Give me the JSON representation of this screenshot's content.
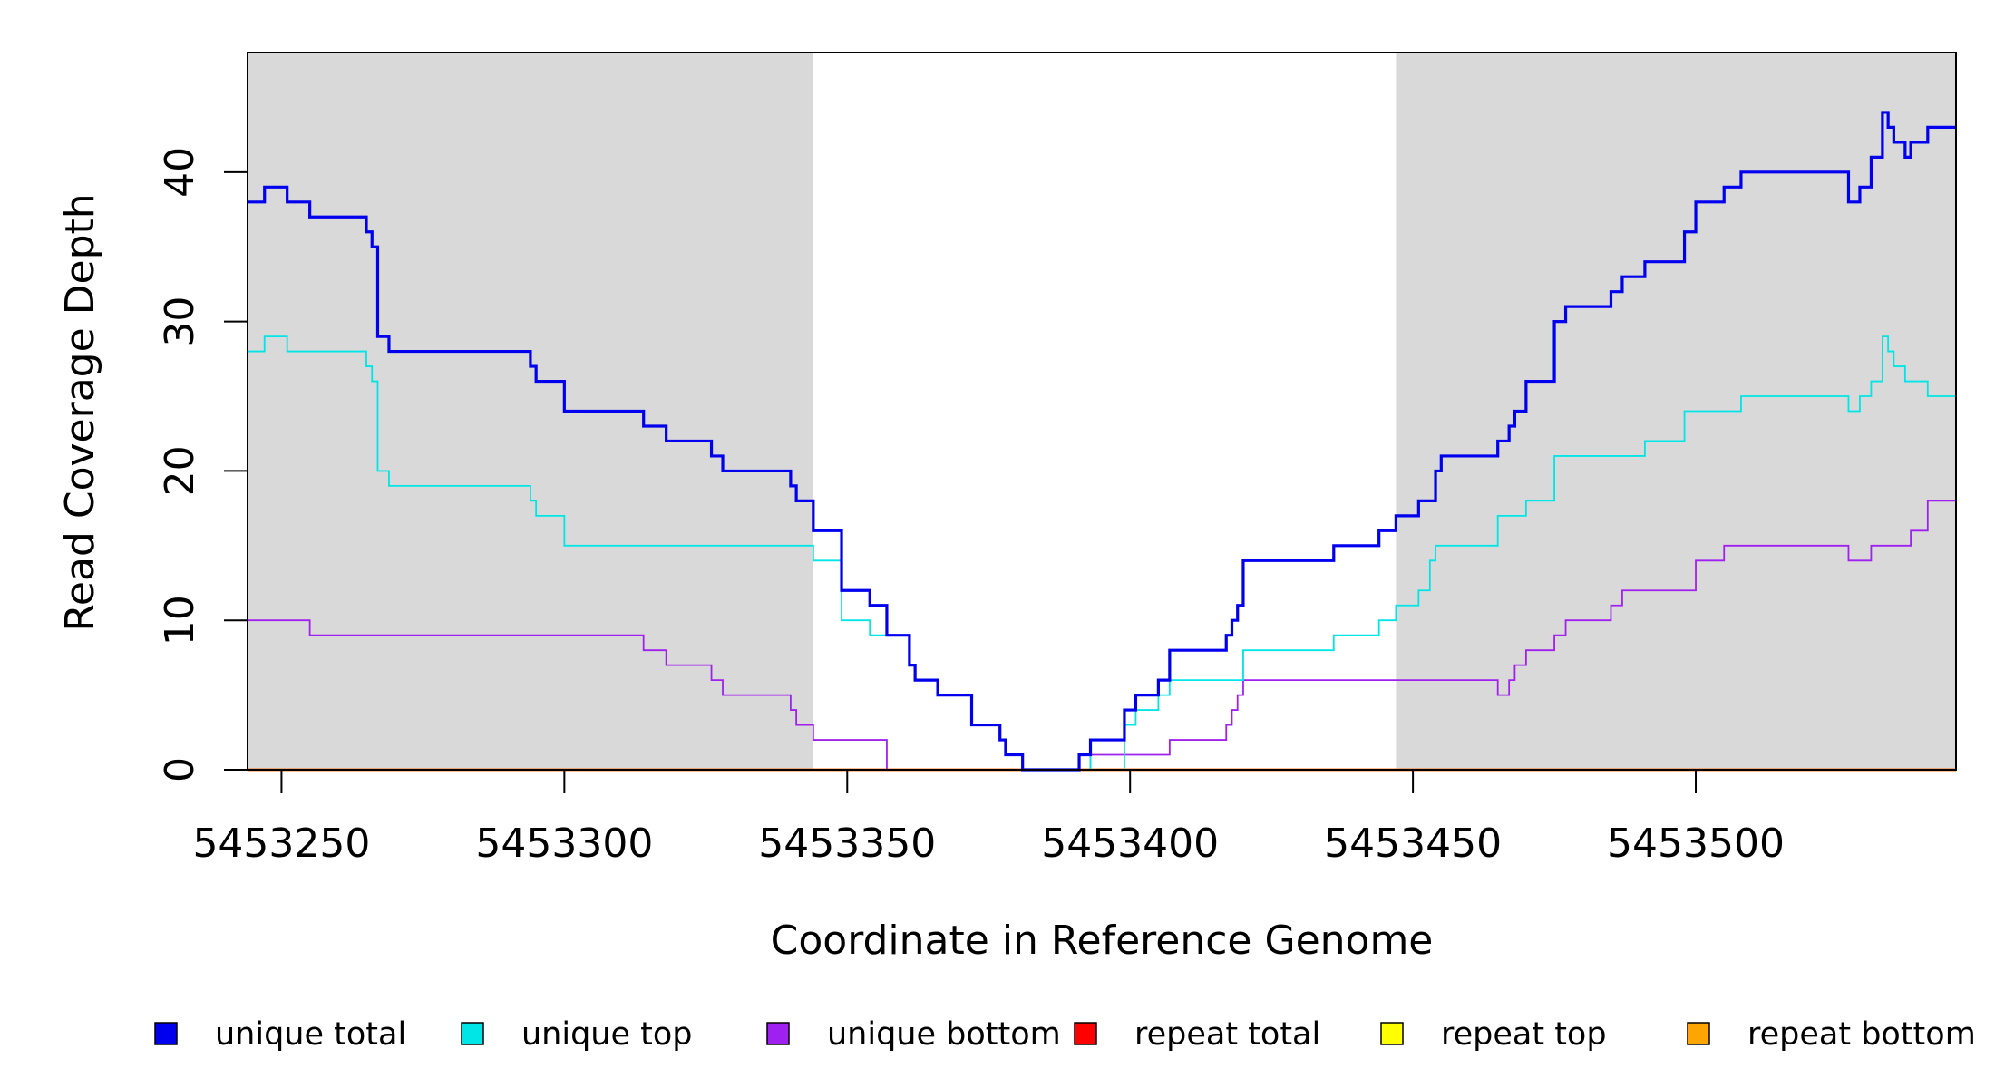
{
  "chart_data": {
    "type": "line",
    "step": true,
    "title": "",
    "xlabel": "Coordinate in Reference Genome",
    "ylabel": "Read Coverage Depth",
    "xlim": [
      5453244,
      5453546
    ],
    "ylim": [
      0,
      48
    ],
    "x_ticks": [
      5453250,
      5453300,
      5453350,
      5453400,
      5453450,
      5453500
    ],
    "y_ticks": [
      0,
      10,
      20,
      30,
      40
    ],
    "shaded_regions": [
      {
        "x_start": 5453244,
        "x_end": 5453344,
        "color": "#d9d9d9"
      },
      {
        "x_start": 5453447,
        "x_end": 5453546,
        "color": "#d9d9d9"
      }
    ],
    "legend_position": "bottom",
    "series": [
      {
        "name": "unique total",
        "color": "#0000ee",
        "points": [
          [
            5453244,
            38
          ],
          [
            5453247,
            39
          ],
          [
            5453251,
            38
          ],
          [
            5453255,
            37
          ],
          [
            5453265,
            36
          ],
          [
            5453266,
            35
          ],
          [
            5453267,
            29
          ],
          [
            5453269,
            28
          ],
          [
            5453294,
            27
          ],
          [
            5453295,
            26
          ],
          [
            5453300,
            24
          ],
          [
            5453314,
            23
          ],
          [
            5453318,
            22
          ],
          [
            5453326,
            21
          ],
          [
            5453328,
            20
          ],
          [
            5453340,
            19
          ],
          [
            5453341,
            18
          ],
          [
            5453344,
            16
          ],
          [
            5453349,
            12
          ],
          [
            5453354,
            11
          ],
          [
            5453357,
            9
          ],
          [
            5453361,
            7
          ],
          [
            5453362,
            6
          ],
          [
            5453366,
            5
          ],
          [
            5453372,
            3
          ],
          [
            5453377,
            2
          ],
          [
            5453378,
            1
          ],
          [
            5453381,
            0
          ],
          [
            5453391,
            1
          ],
          [
            5453393,
            2
          ],
          [
            5453399,
            4
          ],
          [
            5453401,
            5
          ],
          [
            5453405,
            6
          ],
          [
            5453407,
            8
          ],
          [
            5453417,
            9
          ],
          [
            5453418,
            10
          ],
          [
            5453419,
            11
          ],
          [
            5453420,
            14
          ],
          [
            5453436,
            15
          ],
          [
            5453444,
            16
          ],
          [
            5453447,
            17
          ],
          [
            5453451,
            18
          ],
          [
            5453454,
            20
          ],
          [
            5453455,
            21
          ],
          [
            5453465,
            22
          ],
          [
            5453467,
            23
          ],
          [
            5453468,
            24
          ],
          [
            5453470,
            26
          ],
          [
            5453475,
            30
          ],
          [
            5453477,
            31
          ],
          [
            5453485,
            32
          ],
          [
            5453487,
            33
          ],
          [
            5453491,
            34
          ],
          [
            5453498,
            36
          ],
          [
            5453500,
            38
          ],
          [
            5453505,
            39
          ],
          [
            5453508,
            40
          ],
          [
            5453527,
            38
          ],
          [
            5453529,
            39
          ],
          [
            5453531,
            41
          ],
          [
            5453533,
            44
          ],
          [
            5453534,
            43
          ],
          [
            5453535,
            42
          ],
          [
            5453537,
            41
          ],
          [
            5453538,
            42
          ],
          [
            5453541,
            43
          ],
          [
            5453546,
            43
          ]
        ]
      },
      {
        "name": "unique top",
        "color": "#00e5e5",
        "points": [
          [
            5453244,
            28
          ],
          [
            5453247,
            29
          ],
          [
            5453251,
            28
          ],
          [
            5453265,
            27
          ],
          [
            5453266,
            26
          ],
          [
            5453267,
            20
          ],
          [
            5453269,
            19
          ],
          [
            5453294,
            18
          ],
          [
            5453295,
            17
          ],
          [
            5453300,
            15
          ],
          [
            5453344,
            14
          ],
          [
            5453349,
            10
          ],
          [
            5453354,
            9
          ],
          [
            5453361,
            7
          ],
          [
            5453362,
            6
          ],
          [
            5453366,
            5
          ],
          [
            5453372,
            3
          ],
          [
            5453377,
            2
          ],
          [
            5453378,
            1
          ],
          [
            5453381,
            0
          ],
          [
            5453391,
            1
          ],
          [
            5453393,
            0
          ],
          [
            5453399,
            3
          ],
          [
            5453401,
            4
          ],
          [
            5453405,
            5
          ],
          [
            5453407,
            6
          ],
          [
            5453420,
            8
          ],
          [
            5453436,
            9
          ],
          [
            5453444,
            10
          ],
          [
            5453447,
            11
          ],
          [
            5453451,
            12
          ],
          [
            5453453,
            14
          ],
          [
            5453454,
            15
          ],
          [
            5453465,
            17
          ],
          [
            5453470,
            18
          ],
          [
            5453475,
            21
          ],
          [
            5453491,
            22
          ],
          [
            5453498,
            24
          ],
          [
            5453508,
            25
          ],
          [
            5453527,
            24
          ],
          [
            5453529,
            25
          ],
          [
            5453531,
            26
          ],
          [
            5453533,
            29
          ],
          [
            5453534,
            28
          ],
          [
            5453535,
            27
          ],
          [
            5453537,
            26
          ],
          [
            5453541,
            25
          ],
          [
            5453546,
            25
          ]
        ]
      },
      {
        "name": "unique bottom",
        "color": "#a020f0",
        "points": [
          [
            5453244,
            10
          ],
          [
            5453255,
            9
          ],
          [
            5453314,
            8
          ],
          [
            5453318,
            7
          ],
          [
            5453326,
            6
          ],
          [
            5453328,
            5
          ],
          [
            5453340,
            4
          ],
          [
            5453341,
            3
          ],
          [
            5453344,
            2
          ],
          [
            5453357,
            0
          ],
          [
            5453393,
            1
          ],
          [
            5453407,
            2
          ],
          [
            5453417,
            3
          ],
          [
            5453418,
            4
          ],
          [
            5453419,
            5
          ],
          [
            5453420,
            6
          ],
          [
            5453465,
            5
          ],
          [
            5453467,
            6
          ],
          [
            5453468,
            7
          ],
          [
            5453470,
            8
          ],
          [
            5453475,
            9
          ],
          [
            5453477,
            10
          ],
          [
            5453485,
            11
          ],
          [
            5453487,
            12
          ],
          [
            5453500,
            14
          ],
          [
            5453505,
            15
          ],
          [
            5453527,
            14
          ],
          [
            5453531,
            15
          ],
          [
            5453538,
            16
          ],
          [
            5453541,
            18
          ],
          [
            5453546,
            18
          ]
        ]
      },
      {
        "name": "repeat total",
        "color": "#ff0000",
        "points": [
          [
            5453244,
            0
          ],
          [
            5453546,
            0
          ]
        ]
      },
      {
        "name": "repeat top",
        "color": "#ffff00",
        "points": [
          [
            5453244,
            0
          ],
          [
            5453546,
            0
          ]
        ]
      },
      {
        "name": "repeat bottom",
        "color": "#ffa500",
        "points": [
          [
            5453244,
            0
          ],
          [
            5453546,
            0
          ]
        ]
      }
    ]
  }
}
